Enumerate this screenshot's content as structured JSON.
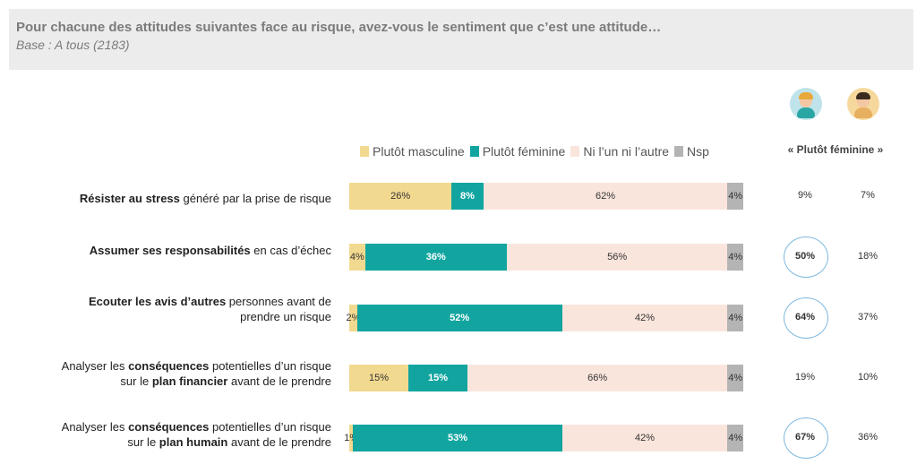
{
  "header": {
    "title": "Pour chacune des attitudes suivantes face au risque, avez-vous le sentiment que c’est une attitude…",
    "subtitle": "Base : A tous (2183)"
  },
  "colors": {
    "masculine": "#f2d990",
    "feminine": "#12a5a0",
    "neither": "#fae5dd",
    "nsp": "#b4b4b4",
    "highlight_ring": "#7db8df"
  },
  "icons": [
    "boy-avatar-icon",
    "girl-avatar-icon"
  ],
  "legend": [
    "Plutôt masculine",
    "Plutôt féminine",
    "Ni l’un ni l’autre",
    "Nsp"
  ],
  "stat_header": "« Plutôt féminine »",
  "chart_data": {
    "type": "bar",
    "orientation": "horizontal",
    "stacked": true,
    "unit": "%",
    "categories": [
      "Résister au stress généré par la prise de risque",
      "Assumer ses responsabilités en cas d’échec",
      "Ecouter les avis d’autres personnes avant de prendre un risque",
      "Analyser les conséquences potentielles d’un risque sur le plan financier avant de le prendre",
      "Analyser les conséquences potentielles d’un risque sur le plan humain avant de le prendre"
    ],
    "series": [
      {
        "name": "Plutôt masculine",
        "values": [
          26,
          4,
          2,
          15,
          1
        ]
      },
      {
        "name": "Plutôt féminine",
        "values": [
          8,
          36,
          52,
          15,
          53
        ]
      },
      {
        "name": "Ni l’un ni l’autre",
        "values": [
          62,
          56,
          42,
          66,
          42
        ]
      },
      {
        "name": "Nsp",
        "values": [
          4,
          4,
          4,
          4,
          4
        ]
      }
    ],
    "side_values": {
      "header": "« Plutôt féminine »",
      "boys": [
        9,
        50,
        64,
        19,
        67
      ],
      "girls": [
        7,
        18,
        37,
        10,
        36
      ],
      "circled_boys": [
        false,
        true,
        true,
        false,
        true
      ]
    }
  }
}
